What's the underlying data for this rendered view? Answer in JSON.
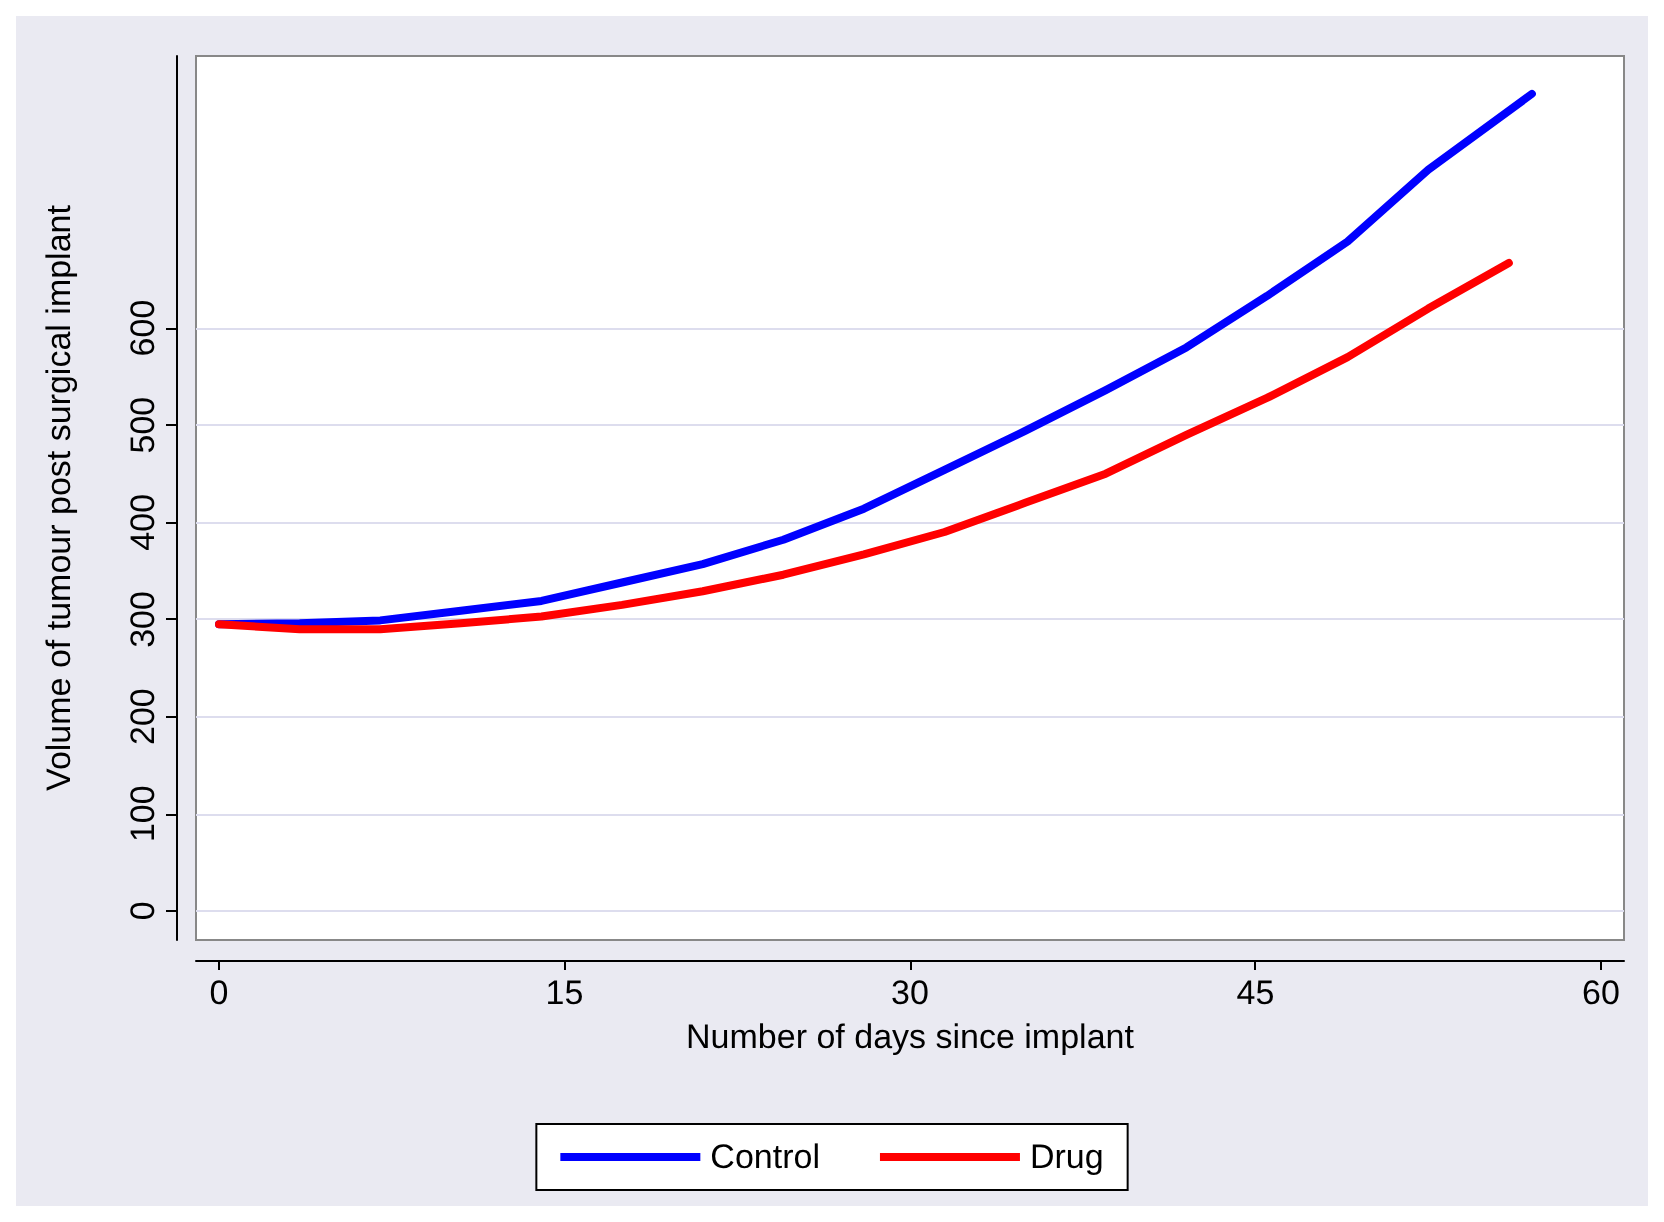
{
  "chart_data": {
    "type": "line",
    "xlabel": "Number of days since implant",
    "ylabel": "Volume of tumour post surgical implant",
    "xlim": [
      -1,
      61
    ],
    "xticks": [
      0,
      15,
      30,
      45,
      60
    ],
    "ylim": [
      -30,
      880
    ],
    "yticks": [
      0,
      100,
      200,
      300,
      400,
      500,
      600
    ],
    "grid": "y",
    "legend": "bottom",
    "marker": "none",
    "line_style": "solid",
    "series": [
      {
        "name": "Control",
        "color": "#0000ff",
        "x": [
          0,
          3.5,
          7,
          10.5,
          14,
          17.5,
          21,
          24.5,
          28,
          31.5,
          35,
          38.5,
          42,
          45.5,
          49,
          52.5,
          57
        ],
        "values": [
          295,
          296,
          299,
          309,
          319,
          338,
          357,
          382,
          414,
          454,
          494,
          536,
          580,
          633,
          689,
          763,
          841
        ]
      },
      {
        "name": "Drug",
        "color": "#ff0000",
        "x": [
          0,
          3.5,
          7,
          10.5,
          14,
          17.5,
          21,
          24.5,
          28,
          31.5,
          35,
          38.5,
          42,
          45.5,
          49,
          52.5,
          56
        ],
        "values": [
          295,
          290,
          290,
          296,
          303,
          315,
          329,
          346,
          367,
          390,
          420,
          450,
          490,
          528,
          570,
          620,
          667
        ]
      }
    ]
  }
}
